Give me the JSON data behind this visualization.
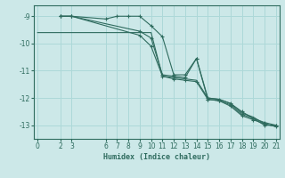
{
  "xlabel": "Humidex (Indice chaleur)",
  "bg_color": "#cce8e8",
  "grid_color": "#add8d8",
  "line_color": "#2e6b5e",
  "series": [
    {
      "x": [
        2,
        3,
        6,
        7,
        8,
        9,
        10,
        11,
        12,
        13,
        14,
        15,
        16,
        17,
        18,
        19,
        20,
        21
      ],
      "y": [
        -9.0,
        -9.0,
        -9.1,
        -9.0,
        -9.0,
        -9.0,
        -9.35,
        -9.75,
        -11.15,
        -11.15,
        -10.55,
        -12.0,
        -12.05,
        -12.2,
        -12.5,
        -12.75,
        -12.9,
        -13.0
      ],
      "marker": "+"
    },
    {
      "x": [
        0,
        2,
        3,
        10,
        11,
        12,
        13,
        14,
        15,
        16,
        17,
        18,
        19,
        20,
        21
      ],
      "y": [
        -9.6,
        -9.6,
        -9.6,
        -9.6,
        -11.2,
        -11.25,
        -11.3,
        -11.35,
        -12.0,
        -12.05,
        -12.2,
        -12.55,
        -12.7,
        -12.95,
        -13.05
      ],
      "marker": null
    },
    {
      "x": [
        2,
        3,
        9,
        10,
        11,
        12,
        13,
        14,
        15,
        16,
        17,
        18,
        19,
        20,
        21
      ],
      "y": [
        -9.0,
        -9.0,
        -9.55,
        -9.8,
        -11.15,
        -11.2,
        -11.25,
        -10.55,
        -12.05,
        -12.1,
        -12.25,
        -12.6,
        -12.75,
        -13.0,
        -13.0
      ],
      "marker": "+"
    },
    {
      "x": [
        2,
        3,
        9,
        10,
        11,
        12,
        13,
        14,
        15,
        16,
        17,
        18,
        19,
        20,
        21
      ],
      "y": [
        -9.0,
        -9.0,
        -9.7,
        -10.1,
        -11.2,
        -11.3,
        -11.35,
        -11.4,
        -12.05,
        -12.1,
        -12.3,
        -12.65,
        -12.8,
        -12.95,
        -13.05
      ],
      "marker": "+"
    }
  ],
  "xlim": [
    -0.3,
    21.3
  ],
  "ylim": [
    -13.5,
    -8.6
  ],
  "xticks": [
    0,
    2,
    3,
    6,
    7,
    8,
    9,
    10,
    11,
    12,
    13,
    14,
    15,
    16,
    17,
    18,
    19,
    20,
    21
  ],
  "yticks": [
    -9,
    -10,
    -11,
    -12,
    -13
  ],
  "tick_fontsize": 5.5,
  "xlabel_fontsize": 6.0
}
